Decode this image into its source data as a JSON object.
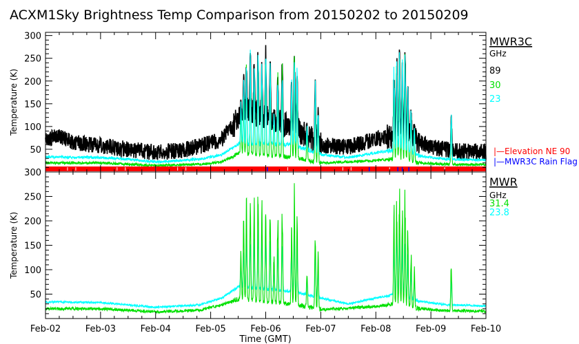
{
  "chart_data": [
    {
      "type": "line",
      "title": "ACXM1Sky Brightness Temp Comparison from 20150202 to 20150209",
      "ylabel": "Temperature (K)",
      "ylim": [
        0,
        307
      ],
      "yticks": [
        50,
        100,
        150,
        200,
        250,
        300
      ],
      "xlim": [
        0,
        8
      ],
      "legend_title": "MWR3C",
      "legend_unit": "GHz",
      "legend_placement": "right",
      "series": [
        {
          "name": "89",
          "color": "#000000",
          "baseline": [
            [
              0,
              70
            ],
            [
              0.2,
              80
            ],
            [
              0.5,
              65
            ],
            [
              1,
              58
            ],
            [
              1.5,
              50
            ],
            [
              2,
              43
            ],
            [
              2.5,
              48
            ],
            [
              2.9,
              60
            ],
            [
              3.2,
              72
            ],
            [
              3.4,
              100
            ],
            [
              3.6,
              135
            ],
            [
              4,
              120
            ],
            [
              4.5,
              100
            ],
            [
              4.8,
              75
            ],
            [
              5,
              58
            ],
            [
              5.5,
              55
            ],
            [
              6,
              72
            ],
            [
              6.3,
              78
            ],
            [
              6.5,
              85
            ],
            [
              6.8,
              68
            ],
            [
              7,
              55
            ],
            [
              7.5,
              45
            ],
            [
              8,
              45
            ]
          ],
          "noise": 18,
          "spike_scale": 1.0
        },
        {
          "name": "30",
          "color": "#00e000",
          "baseline": [
            [
              0,
              20
            ],
            [
              1,
              20
            ],
            [
              1.5,
              17
            ],
            [
              2,
              14
            ],
            [
              2.8,
              17
            ],
            [
              3.2,
              22
            ],
            [
              3.5,
              40
            ],
            [
              4.5,
              32
            ],
            [
              5,
              20
            ],
            [
              6,
              25
            ],
            [
              6.4,
              30
            ],
            [
              6.8,
              20
            ],
            [
              7.3,
              17
            ],
            [
              8,
              16
            ]
          ],
          "noise": 3,
          "spike_scale": 0.95
        },
        {
          "name": "23",
          "color": "#00ffff",
          "baseline": [
            [
              0,
              33
            ],
            [
              1,
              32
            ],
            [
              1.5,
              28
            ],
            [
              2,
              22
            ],
            [
              2.8,
              28
            ],
            [
              3.2,
              38
            ],
            [
              3.5,
              62
            ],
            [
              4.5,
              60
            ],
            [
              5,
              38
            ],
            [
              5.5,
              32
            ],
            [
              6,
              42
            ],
            [
              6.4,
              50
            ],
            [
              6.8,
              35
            ],
            [
              7.3,
              28
            ],
            [
              8,
              26
            ]
          ],
          "noise": 3,
          "spike_scale": 1.0
        }
      ],
      "flags": [
        {
          "label": "Elevation NE 90",
          "color": "#ff0000"
        },
        {
          "label": "MWR3C Rain Flag",
          "color": "#0000ff"
        }
      ],
      "rain_flag_days": [
        4.03,
        5.88,
        6.4,
        6.48,
        6.6
      ]
    },
    {
      "type": "line",
      "xlabel": "Time (GMT)",
      "ylabel": "Temperature (K)",
      "ylim": [
        0,
        300
      ],
      "yticks": [
        50,
        100,
        150,
        200,
        250,
        300
      ],
      "xlim": [
        0,
        8
      ],
      "xticks": [
        "Feb-02",
        "Feb-03",
        "Feb-04",
        "Feb-05",
        "Feb-06",
        "Feb-07",
        "Feb-08",
        "Feb-09",
        "Feb-10"
      ],
      "legend_title": "MWR",
      "legend_unit": "GHz",
      "legend_placement": "right",
      "series": [
        {
          "name": "23.8",
          "color": "#00ffff",
          "baseline": [
            [
              0,
              34
            ],
            [
              1,
              33
            ],
            [
              1.5,
              28
            ],
            [
              2,
              23
            ],
            [
              2.8,
              28
            ],
            [
              3.2,
              42
            ],
            [
              3.5,
              65
            ],
            [
              4.5,
              55
            ],
            [
              5,
              42
            ],
            [
              5.5,
              30
            ],
            [
              6,
              42
            ],
            [
              6.4,
              50
            ],
            [
              6.8,
              35
            ],
            [
              7.3,
              28
            ],
            [
              8,
              26
            ]
          ],
          "noise": 2,
          "spike_scale": 0.6
        },
        {
          "name": "31.4",
          "color": "#00e000",
          "baseline": [
            [
              0,
              20
            ],
            [
              1,
              20
            ],
            [
              1.5,
              17
            ],
            [
              2,
              14
            ],
            [
              2.8,
              17
            ],
            [
              3.2,
              28
            ],
            [
              3.5,
              40
            ],
            [
              4.5,
              30
            ],
            [
              5,
              18
            ],
            [
              6,
              25
            ],
            [
              6.4,
              30
            ],
            [
              6.8,
              20
            ],
            [
              7.3,
              16
            ],
            [
              8,
              15
            ]
          ],
          "noise": 3,
          "spike_scale": 1.0
        }
      ]
    }
  ],
  "spikes": [
    [
      3.55,
      160
    ],
    [
      3.6,
      220
    ],
    [
      3.65,
      255
    ],
    [
      3.72,
      270
    ],
    [
      3.79,
      265
    ],
    [
      3.86,
      282
    ],
    [
      3.93,
      250
    ],
    [
      4.0,
      280
    ],
    [
      4.08,
      262
    ],
    [
      4.15,
      140
    ],
    [
      4.22,
      230
    ],
    [
      4.3,
      250
    ],
    [
      4.47,
      210
    ],
    [
      4.52,
      285
    ],
    [
      4.57,
      240
    ],
    [
      4.75,
      110
    ],
    [
      4.9,
      205
    ],
    [
      4.95,
      150
    ],
    [
      6.33,
      240
    ],
    [
      6.38,
      270
    ],
    [
      6.43,
      285
    ],
    [
      6.48,
      250
    ],
    [
      6.53,
      280
    ],
    [
      6.58,
      200
    ],
    [
      6.64,
      150
    ],
    [
      6.7,
      110
    ],
    [
      7.37,
      130
    ]
  ]
}
